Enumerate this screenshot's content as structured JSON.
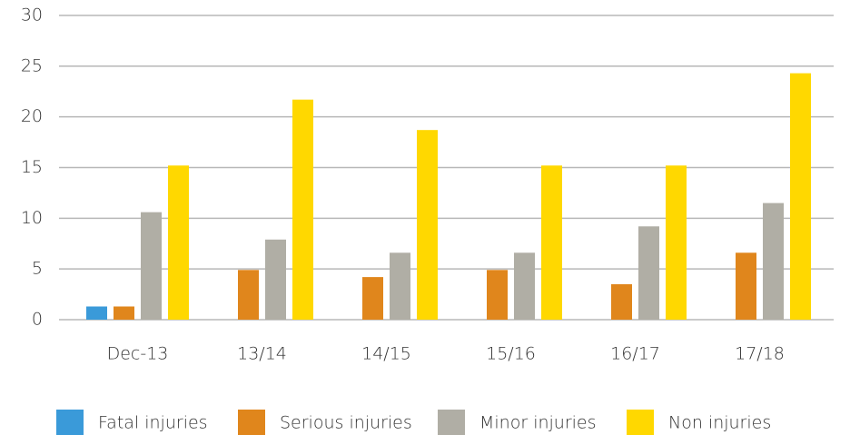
{
  "chart_data": {
    "type": "bar",
    "categories": [
      "Dec-13",
      "13/14",
      "14/15",
      "15/16",
      "16/17",
      "17/18"
    ],
    "series": [
      {
        "name": "Fatal injuries",
        "color": "#3a9ad9",
        "values": [
          1.3,
          0,
          0,
          0,
          0,
          0
        ]
      },
      {
        "name": "Serious injuries",
        "color": "#e0861c",
        "values": [
          1.3,
          4.9,
          4.2,
          4.9,
          3.5,
          6.6
        ]
      },
      {
        "name": "Minor injuries",
        "color": "#b0aea5",
        "values": [
          10.6,
          7.9,
          6.6,
          6.6,
          9.2,
          11.5
        ]
      },
      {
        "name": "Non injuries",
        "color": "#ffd800",
        "values": [
          15.2,
          21.7,
          18.7,
          15.2,
          15.2,
          24.3
        ]
      }
    ],
    "ylim": [
      0,
      30
    ],
    "yticks": [
      0,
      5,
      10,
      15,
      20,
      25,
      30
    ],
    "grid": true,
    "legend": "bottom"
  }
}
